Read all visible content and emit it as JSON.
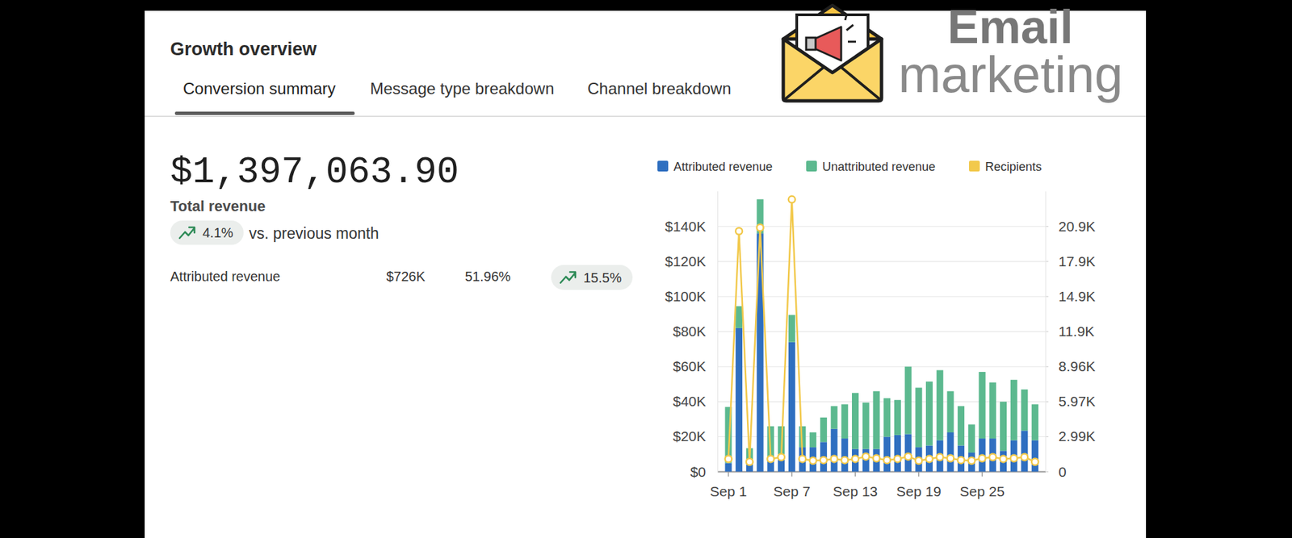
{
  "header": {
    "title": "Growth overview",
    "tabs": [
      "Conversion summary",
      "Message type breakdown",
      "Channel breakdown"
    ]
  },
  "logo": {
    "line1": "Email",
    "line2": "marketing"
  },
  "summary": {
    "total": "$1,397,063.90",
    "total_label": "Total revenue",
    "change": "4.1%",
    "change_text": "vs. previous month",
    "rows": [
      {
        "label": "Attributed revenue",
        "value": "$726K",
        "share": "51.96%",
        "change": "15.5%"
      }
    ]
  },
  "chart_data": {
    "type": "bar",
    "stacked": true,
    "grid": true,
    "legend": "top",
    "categories": [
      "Sep 1",
      null,
      null,
      null,
      null,
      null,
      "Sep 7",
      null,
      null,
      null,
      null,
      null,
      "Sep 13",
      null,
      null,
      null,
      null,
      null,
      "Sep 19",
      null,
      null,
      null,
      null,
      null,
      "Sep 25",
      null,
      null,
      null,
      null,
      null
    ],
    "series": [
      {
        "name": "Attributed revenue",
        "color": "#2f6fc0",
        "values": [
          5000,
          82000,
          6000,
          136000,
          8000,
          10000,
          74000,
          14000,
          14000,
          17000,
          24500,
          19000,
          13000,
          13000,
          13000,
          20000,
          21000,
          21500,
          14000,
          15000,
          18000,
          22500,
          15000,
          11000,
          19000,
          19000,
          12000,
          18000,
          23500,
          18000
        ]
      },
      {
        "name": "Unattributed revenue",
        "color": "#5cb98f",
        "values": [
          32000,
          12500,
          7500,
          19500,
          18000,
          16000,
          15500,
          12000,
          8500,
          14000,
          13000,
          19500,
          32000,
          26500,
          33000,
          22000,
          20000,
          38500,
          34000,
          36500,
          40000,
          23500,
          22500,
          16000,
          38000,
          32000,
          28000,
          34500,
          23500,
          20500
        ]
      },
      {
        "name": "Recipients",
        "type": "line",
        "axis": "y2",
        "color": "#f2c94c",
        "marker": "circle",
        "values": [
          1100,
          20500,
          850,
          20800,
          1100,
          1250,
          23200,
          1100,
          950,
          1000,
          1100,
          1000,
          1100,
          1300,
          1150,
          1000,
          1100,
          1300,
          950,
          1100,
          1250,
          1150,
          1000,
          950,
          1150,
          1250,
          1100,
          1150,
          1250,
          850
        ]
      }
    ],
    "ylim": [
      0,
      160000
    ],
    "yticks": [
      {
        "value": 0,
        "label": "$0"
      },
      {
        "value": 20000,
        "label": "$20K"
      },
      {
        "value": 40000,
        "label": "$40K"
      },
      {
        "value": 60000,
        "label": "$60K"
      },
      {
        "value": 80000,
        "label": "$80K"
      },
      {
        "value": 100000,
        "label": "$100K"
      },
      {
        "value": 120000,
        "label": "$120K"
      },
      {
        "value": 140000,
        "label": "$140K"
      }
    ],
    "y2lim": [
      0,
      23888
    ],
    "y2ticks": [
      0,
      {
        "value": 2986,
        "label": "2.99K"
      },
      {
        "value": 5972,
        "label": "5.97K"
      },
      {
        "value": 8958,
        "label": "8.96K"
      },
      {
        "value": 11944,
        "label": "11.9K"
      },
      {
        "value": 14930,
        "label": "14.9K"
      },
      {
        "value": 17916,
        "label": "17.9K"
      },
      {
        "value": 20902,
        "label": "20.9K"
      }
    ]
  }
}
